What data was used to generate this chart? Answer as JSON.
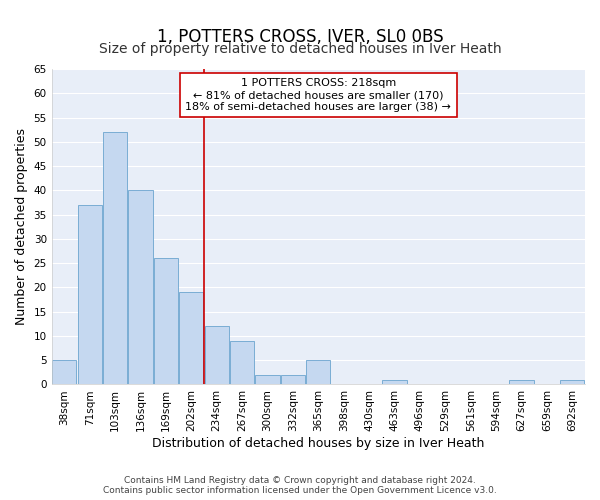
{
  "title": "1, POTTERS CROSS, IVER, SL0 0BS",
  "subtitle": "Size of property relative to detached houses in Iver Heath",
  "xlabel": "Distribution of detached houses by size in Iver Heath",
  "ylabel": "Number of detached properties",
  "categories": [
    "38sqm",
    "71sqm",
    "103sqm",
    "136sqm",
    "169sqm",
    "202sqm",
    "234sqm",
    "267sqm",
    "300sqm",
    "332sqm",
    "365sqm",
    "398sqm",
    "430sqm",
    "463sqm",
    "496sqm",
    "529sqm",
    "561sqm",
    "594sqm",
    "627sqm",
    "659sqm",
    "692sqm"
  ],
  "values": [
    5,
    37,
    52,
    40,
    26,
    19,
    12,
    9,
    2,
    2,
    5,
    0,
    0,
    1,
    0,
    0,
    0,
    0,
    1,
    0,
    1
  ],
  "bar_color": "#c5d8f0",
  "bar_edge_color": "#7aadd4",
  "ylim": [
    0,
    65
  ],
  "yticks": [
    0,
    5,
    10,
    15,
    20,
    25,
    30,
    35,
    40,
    45,
    50,
    55,
    60,
    65
  ],
  "vline_x": 5.5,
  "vline_color": "#cc0000",
  "annotation_text": "1 POTTERS CROSS: 218sqm\n← 81% of detached houses are smaller (170)\n18% of semi-detached houses are larger (38) →",
  "annotation_box_color": "#ffffff",
  "annotation_box_edgecolor": "#cc0000",
  "bg_color": "#ffffff",
  "plot_bg_color": "#e8eef8",
  "footer_line1": "Contains HM Land Registry data © Crown copyright and database right 2024.",
  "footer_line2": "Contains public sector information licensed under the Open Government Licence v3.0.",
  "title_fontsize": 12,
  "subtitle_fontsize": 10,
  "axis_label_fontsize": 9,
  "tick_fontsize": 7.5,
  "annotation_fontsize": 8
}
